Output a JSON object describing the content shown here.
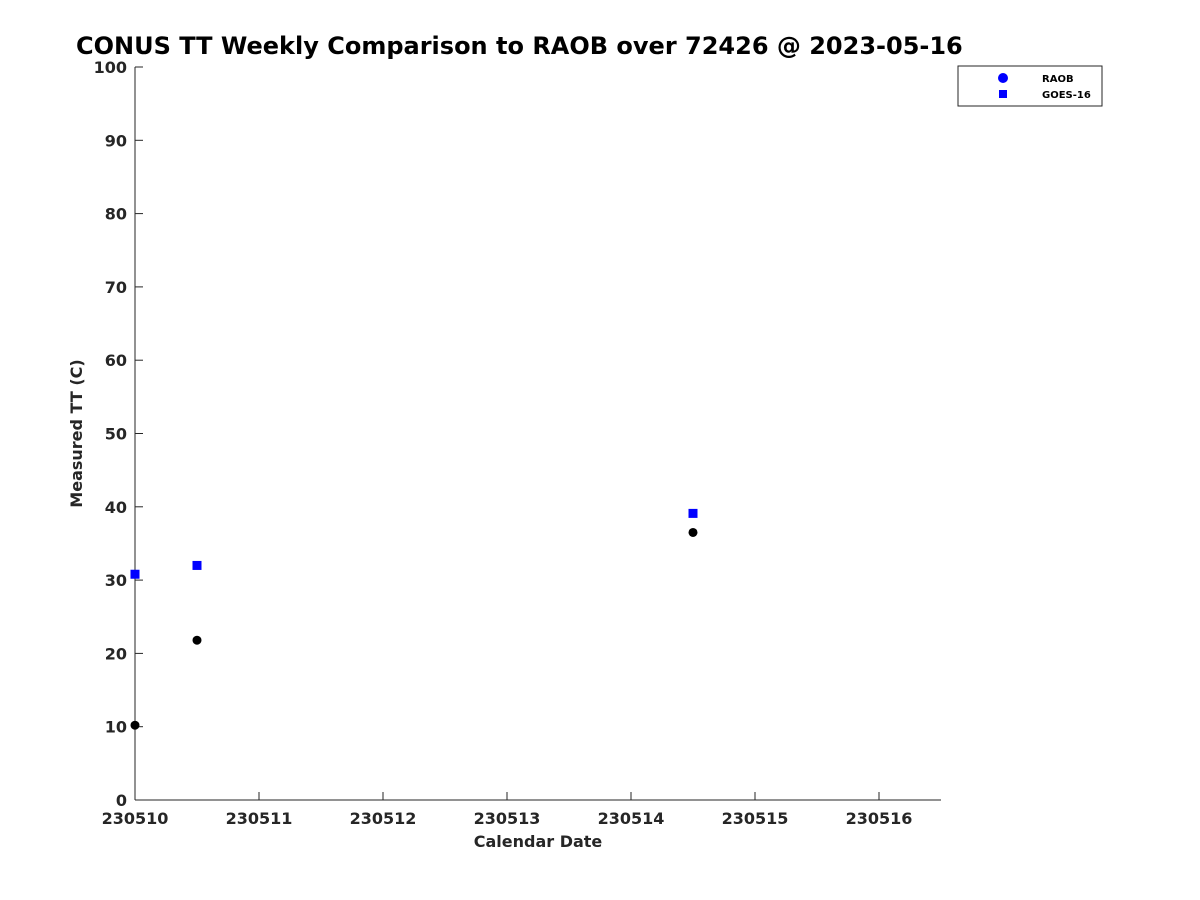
{
  "chart_data": {
    "type": "scatter",
    "title": "CONUS TT Weekly Comparison to RAOB over 72426 @ 2023-05-16",
    "xlabel": "Calendar Date",
    "ylabel": "Measured TT (C)",
    "x_ticks": [
      "230510",
      "230511",
      "230512",
      "230513",
      "230514",
      "230515",
      "230516"
    ],
    "x_tick_values": [
      0,
      1,
      2,
      3,
      4,
      5,
      6
    ],
    "xlim": [
      0,
      6.5
    ],
    "ylim": [
      0,
      100
    ],
    "y_ticks": [
      "0",
      "10",
      "20",
      "30",
      "40",
      "50",
      "60",
      "70",
      "80",
      "90",
      "100"
    ],
    "y_tick_values": [
      0,
      10,
      20,
      30,
      40,
      50,
      60,
      70,
      80,
      90,
      100
    ],
    "grid": false,
    "legend_position": "top-right",
    "series": [
      {
        "name": "RAOB",
        "marker": "circle",
        "color": "#000000",
        "legend_color": "#0000ff",
        "x": [
          0,
          0.5,
          4.5
        ],
        "y": [
          10.2,
          21.8,
          36.5
        ]
      },
      {
        "name": "GOES-16",
        "marker": "square",
        "color": "#0000ff",
        "x": [
          0,
          0.5,
          4.5
        ],
        "y": [
          30.8,
          32.0,
          39.1
        ]
      }
    ]
  }
}
